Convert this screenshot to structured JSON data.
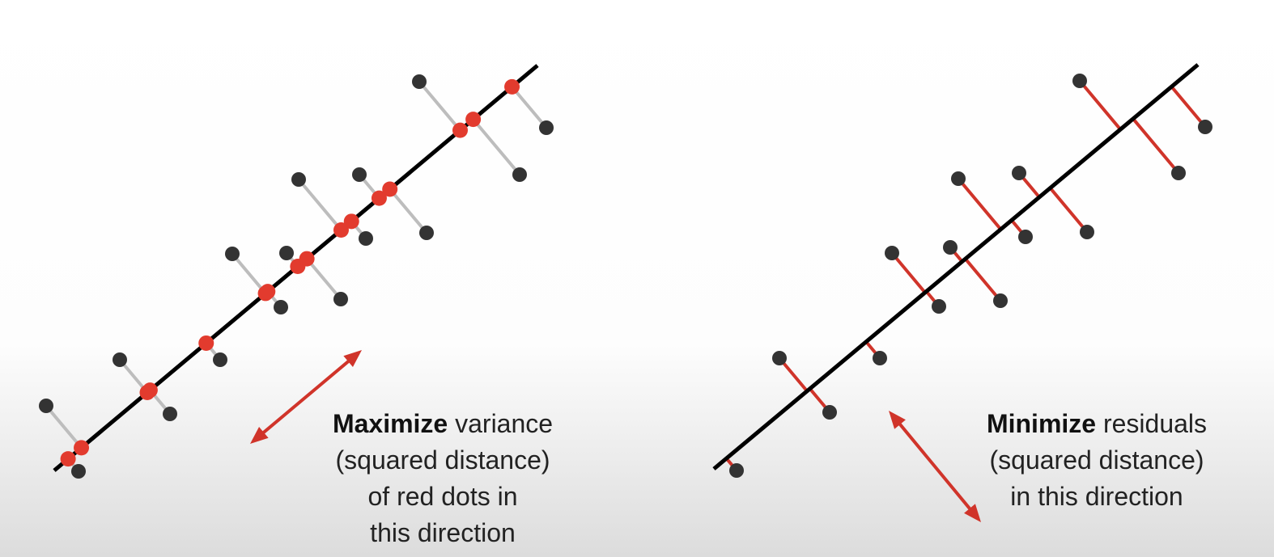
{
  "left_panel": {
    "caption_bold": "Maximize",
    "caption_rest": " variance",
    "caption_lines": [
      "(squared distance)",
      "of red dots in",
      "this direction"
    ]
  },
  "right_panel": {
    "caption_bold": "Minimize",
    "caption_rest": " residuals",
    "caption_lines": [
      "(squared distance)",
      "in this direction"
    ]
  },
  "colors": {
    "axis_line": "#000000",
    "data_point": "#333333",
    "projection_point": "#e23b2e",
    "projection_segment": "#bdbdbd",
    "residual_segment": "#d0342a",
    "arrow": "#d0342a"
  }
}
